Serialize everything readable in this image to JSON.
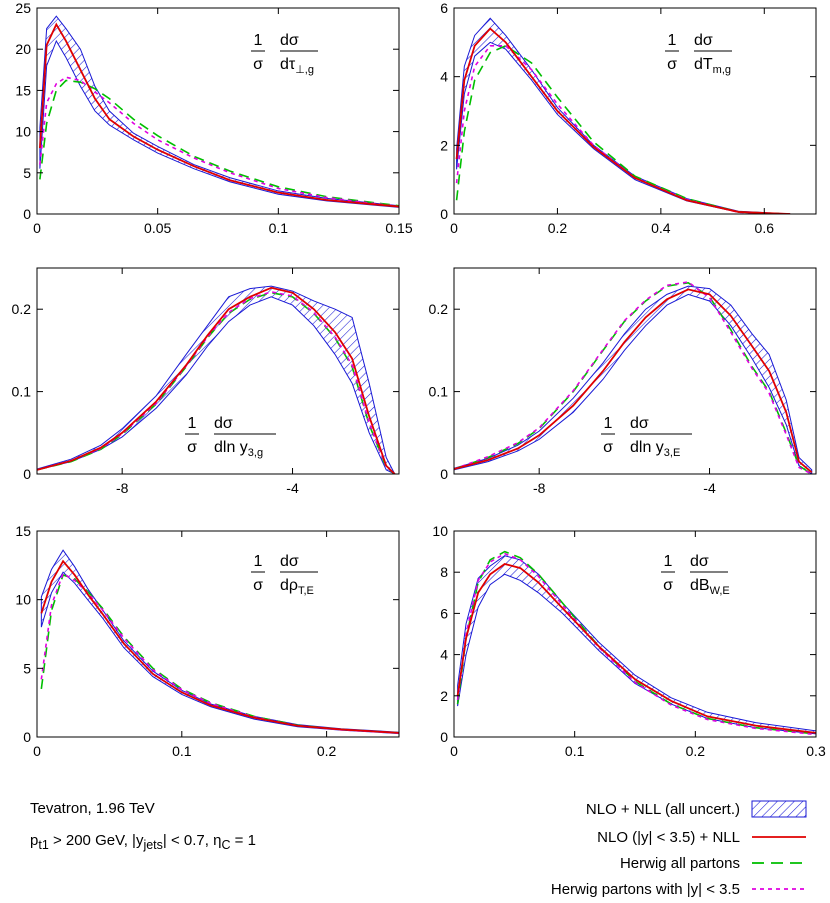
{
  "footer": {
    "line1": "Tevatron, 1.96 TeV",
    "line2_pre": "p",
    "line2_sub1": "t1",
    "line2_mid": " > 200 GeV, |y",
    "line2_sub2": "jets",
    "line2_mid2": "| < 0.7, η",
    "line2_sub3": "C",
    "line2_post": " = 1"
  },
  "legend": [
    {
      "label": "NLO + NLL (all uncert.)",
      "style": "band",
      "color": "#1a1ad6"
    },
    {
      "label": "NLO (|y| < 3.5) + NLL",
      "style": "solid",
      "color": "#e00000"
    },
    {
      "label": "Herwig all partons",
      "style": "dashed",
      "color": "#00bf00"
    },
    {
      "label": "Herwig partons with |y| < 3.5",
      "style": "dotted",
      "color": "#e000e0"
    }
  ],
  "chart_data": [
    {
      "type": "line",
      "label_num": "1",
      "label_den": "σ",
      "label_d": "dσ",
      "label_var": "dτ",
      "label_var_sub": "⊥,g",
      "xlim": [
        0,
        0.15
      ],
      "ylim": [
        0,
        25
      ],
      "xticks": [
        0,
        0.05,
        0.1,
        0.15
      ],
      "xtick_labels": [
        "0",
        "0.05",
        "0.1",
        "0.15"
      ],
      "yticks": [
        0,
        5,
        10,
        15,
        20,
        25
      ],
      "ytick_labels": [
        "0",
        "5",
        "10",
        "15",
        "20",
        "25"
      ],
      "x": [
        0.0012,
        0.004,
        0.008,
        0.012,
        0.018,
        0.024,
        0.03,
        0.04,
        0.05,
        0.065,
        0.08,
        0.1,
        0.12,
        0.15
      ],
      "band_lo": [
        5.5,
        18,
        21,
        19,
        15.5,
        12.5,
        10.8,
        9.0,
        7.4,
        5.5,
        3.9,
        2.4,
        1.6,
        0.8
      ],
      "band_hi": [
        10.5,
        22.5,
        24,
        22.5,
        20,
        15.5,
        12.5,
        9.8,
        8.2,
        6.0,
        4.4,
        2.8,
        1.9,
        1.0
      ],
      "nlo": [
        8,
        20.5,
        23,
        21,
        17.5,
        14,
        11.5,
        9.4,
        7.8,
        5.8,
        4.1,
        2.6,
        1.7,
        0.9
      ],
      "herwig": [
        4.2,
        11,
        15,
        16.2,
        16.0,
        15.2,
        14.0,
        11.5,
        9.5,
        7.0,
        5.2,
        3.3,
        2.1,
        1.0
      ],
      "herwig_cut": [
        6,
        13.5,
        15.8,
        16.6,
        16.2,
        14.8,
        13.5,
        11.0,
        9.0,
        6.8,
        5.0,
        3.1,
        2.0,
        0.9
      ]
    },
    {
      "type": "line",
      "label_num": "1",
      "label_den": "σ",
      "label_d": "dσ",
      "label_var": "dT",
      "label_var_sub": "m,g",
      "xlim": [
        0,
        0.7
      ],
      "ylim": [
        0,
        6
      ],
      "xticks": [
        0,
        0.2,
        0.4,
        0.6
      ],
      "xtick_labels": [
        "0",
        "0.2",
        "0.4",
        "0.6"
      ],
      "yticks": [
        0,
        2,
        4,
        6
      ],
      "ytick_labels": [
        "0",
        "2",
        "4",
        "6"
      ],
      "x": [
        0.005,
        0.02,
        0.04,
        0.07,
        0.1,
        0.15,
        0.2,
        0.27,
        0.35,
        0.45,
        0.55,
        0.65
      ],
      "band_lo": [
        1.3,
        3.5,
        4.6,
        5.0,
        4.8,
        3.9,
        2.9,
        1.9,
        1.0,
        0.38,
        0.05,
        0.0
      ],
      "band_hi": [
        1.9,
        4.3,
        5.2,
        5.7,
        5.2,
        4.2,
        3.1,
        2.0,
        1.1,
        0.45,
        0.08,
        0.0
      ],
      "nlo": [
        1.6,
        3.9,
        4.9,
        5.4,
        5.0,
        4.0,
        3.0,
        1.95,
        1.05,
        0.4,
        0.06,
        0.0
      ],
      "herwig": [
        0.4,
        2.4,
        3.9,
        4.7,
        4.9,
        4.4,
        3.4,
        2.1,
        1.1,
        0.45,
        0.06,
        0.0
      ],
      "herwig_cut": [
        0.9,
        3.0,
        4.3,
        4.9,
        4.9,
        4.2,
        3.2,
        2.0,
        1.05,
        0.42,
        0.05,
        0.0
      ]
    },
    {
      "type": "line",
      "label_num": "1",
      "label_den": "σ",
      "label_d": "dσ",
      "label_var": "dln y",
      "label_var_sub": "3,g",
      "xlim": [
        -10,
        -1.5
      ],
      "ylim": [
        0,
        0.25
      ],
      "xticks": [
        -8,
        -4
      ],
      "xtick_labels": [
        "-8",
        "-4"
      ],
      "yticks": [
        0,
        0.1,
        0.2
      ],
      "ytick_labels": [
        "0",
        "0.1",
        "0.2"
      ],
      "x": [
        -10,
        -9.2,
        -8.5,
        -8,
        -7.2,
        -6.5,
        -6,
        -5.5,
        -5,
        -4.5,
        -4,
        -3.5,
        -3,
        -2.6,
        -2.2,
        -1.8,
        -1.6
      ],
      "band_lo": [
        0.005,
        0.015,
        0.03,
        0.045,
        0.08,
        0.12,
        0.155,
        0.185,
        0.205,
        0.215,
        0.205,
        0.18,
        0.145,
        0.11,
        0.05,
        0.005,
        0.0
      ],
      "band_hi": [
        0.006,
        0.018,
        0.035,
        0.055,
        0.095,
        0.145,
        0.18,
        0.215,
        0.225,
        0.228,
        0.222,
        0.21,
        0.2,
        0.19,
        0.11,
        0.02,
        0.0
      ],
      "nlo": [
        0.005,
        0.016,
        0.032,
        0.05,
        0.088,
        0.132,
        0.168,
        0.2,
        0.215,
        0.226,
        0.22,
        0.2,
        0.172,
        0.14,
        0.07,
        0.01,
        0.0
      ],
      "herwig": [
        0.005,
        0.015,
        0.03,
        0.048,
        0.085,
        0.13,
        0.165,
        0.195,
        0.212,
        0.22,
        0.215,
        0.195,
        0.165,
        0.13,
        0.06,
        0.008,
        0.0
      ],
      "herwig_cut": [
        0.005,
        0.016,
        0.031,
        0.049,
        0.086,
        0.131,
        0.166,
        0.196,
        0.213,
        0.221,
        0.216,
        0.196,
        0.166,
        0.132,
        0.062,
        0.009,
        0.0
      ]
    },
    {
      "type": "line",
      "label_num": "1",
      "label_den": "σ",
      "label_d": "dσ",
      "label_var": "dln y",
      "label_var_sub": "3,E",
      "xlim": [
        -10,
        -1.5
      ],
      "ylim": [
        0,
        0.25
      ],
      "xticks": [
        -8,
        -4
      ],
      "xtick_labels": [
        "-8",
        "-4"
      ],
      "yticks": [
        0,
        0.1,
        0.2
      ],
      "ytick_labels": [
        "0",
        "0.1",
        "0.2"
      ],
      "x": [
        -10,
        -9.2,
        -8.5,
        -8,
        -7.2,
        -6.5,
        -6,
        -5.5,
        -5,
        -4.5,
        -4,
        -3.5,
        -3,
        -2.6,
        -2.2,
        -1.9,
        -1.6
      ],
      "band_lo": [
        0.005,
        0.015,
        0.028,
        0.042,
        0.075,
        0.115,
        0.15,
        0.18,
        0.205,
        0.218,
        0.21,
        0.18,
        0.14,
        0.105,
        0.06,
        0.01,
        0.0
      ],
      "band_hi": [
        0.007,
        0.019,
        0.035,
        0.052,
        0.092,
        0.135,
        0.17,
        0.2,
        0.218,
        0.228,
        0.225,
        0.205,
        0.17,
        0.145,
        0.09,
        0.02,
        0.005
      ],
      "nlo": [
        0.006,
        0.017,
        0.031,
        0.047,
        0.083,
        0.125,
        0.16,
        0.19,
        0.212,
        0.224,
        0.218,
        0.192,
        0.155,
        0.125,
        0.075,
        0.015,
        0.002
      ],
      "herwig": [
        0.006,
        0.02,
        0.037,
        0.055,
        0.1,
        0.15,
        0.185,
        0.21,
        0.228,
        0.232,
        0.215,
        0.175,
        0.13,
        0.1,
        0.05,
        0.01,
        0.0
      ],
      "herwig_cut": [
        0.006,
        0.021,
        0.038,
        0.056,
        0.101,
        0.151,
        0.186,
        0.211,
        0.229,
        0.233,
        0.214,
        0.172,
        0.128,
        0.098,
        0.048,
        0.008,
        0.0
      ]
    },
    {
      "type": "line",
      "label_num": "1",
      "label_den": "σ",
      "label_d": "dσ",
      "label_var": "dρ",
      "label_var_sub": "T,E",
      "xlim": [
        0,
        0.25
      ],
      "ylim": [
        0,
        15
      ],
      "xticks": [
        0,
        0.1,
        0.2
      ],
      "xtick_labels": [
        "0",
        "0.1",
        "0.2"
      ],
      "yticks": [
        0,
        5,
        10,
        15
      ],
      "ytick_labels": [
        "0",
        "5",
        "10",
        "15"
      ],
      "x": [
        0.003,
        0.01,
        0.018,
        0.026,
        0.035,
        0.045,
        0.06,
        0.08,
        0.1,
        0.12,
        0.15,
        0.18,
        0.21,
        0.25
      ],
      "band_lo": [
        8,
        10.5,
        12.0,
        11.2,
        10.0,
        8.7,
        6.5,
        4.4,
        3.1,
        2.2,
        1.3,
        0.75,
        0.5,
        0.25
      ],
      "band_hi": [
        10.2,
        12.2,
        13.6,
        12.4,
        10.8,
        9.3,
        7.0,
        4.8,
        3.4,
        2.4,
        1.5,
        0.9,
        0.6,
        0.35
      ],
      "nlo": [
        9,
        11.3,
        12.8,
        11.8,
        10.4,
        9.0,
        6.8,
        4.6,
        3.25,
        2.3,
        1.4,
        0.82,
        0.55,
        0.3
      ],
      "herwig": [
        3.5,
        9.2,
        11.8,
        11.5,
        10.6,
        9.4,
        7.3,
        5.0,
        3.5,
        2.5,
        1.5,
        0.85,
        0.55,
        0.3
      ],
      "herwig_cut": [
        4.2,
        9.6,
        11.9,
        11.4,
        10.5,
        9.3,
        7.2,
        4.9,
        3.45,
        2.45,
        1.45,
        0.82,
        0.52,
        0.28
      ]
    },
    {
      "type": "line",
      "label_num": "1",
      "label_den": "σ",
      "label_d": "dσ",
      "label_var": "dB",
      "label_var_sub": "W,E",
      "xlim": [
        0,
        0.3
      ],
      "ylim": [
        0,
        10
      ],
      "xticks": [
        0,
        0.1,
        0.2,
        0.3
      ],
      "xtick_labels": [
        "0",
        "0.1",
        "0.2",
        "0.3"
      ],
      "yticks": [
        0,
        2,
        4,
        6,
        8,
        10
      ],
      "ytick_labels": [
        "0",
        "2",
        "4",
        "6",
        "8",
        "10"
      ],
      "x": [
        0.003,
        0.01,
        0.02,
        0.03,
        0.042,
        0.055,
        0.07,
        0.09,
        0.12,
        0.15,
        0.18,
        0.21,
        0.25,
        0.3
      ],
      "band_lo": [
        1.5,
        4.0,
        6.3,
        7.4,
        7.9,
        7.6,
        7.0,
        6.0,
        4.2,
        2.6,
        1.6,
        0.9,
        0.45,
        0.15
      ],
      "band_hi": [
        2.5,
        5.5,
        7.7,
        8.3,
        8.8,
        8.6,
        7.9,
        6.5,
        4.6,
        3.0,
        1.9,
        1.2,
        0.7,
        0.3
      ],
      "nlo": [
        2.0,
        4.8,
        7.0,
        7.9,
        8.4,
        8.2,
        7.5,
        6.25,
        4.4,
        2.8,
        1.75,
        1.0,
        0.55,
        0.2
      ],
      "herwig": [
        1.6,
        4.8,
        7.5,
        8.6,
        9.0,
        8.7,
        7.9,
        6.5,
        4.4,
        2.7,
        1.6,
        0.9,
        0.45,
        0.15
      ],
      "herwig_cut": [
        1.8,
        5.0,
        7.6,
        8.5,
        8.9,
        8.6,
        7.8,
        6.4,
        4.35,
        2.65,
        1.55,
        0.85,
        0.42,
        0.12
      ]
    }
  ]
}
